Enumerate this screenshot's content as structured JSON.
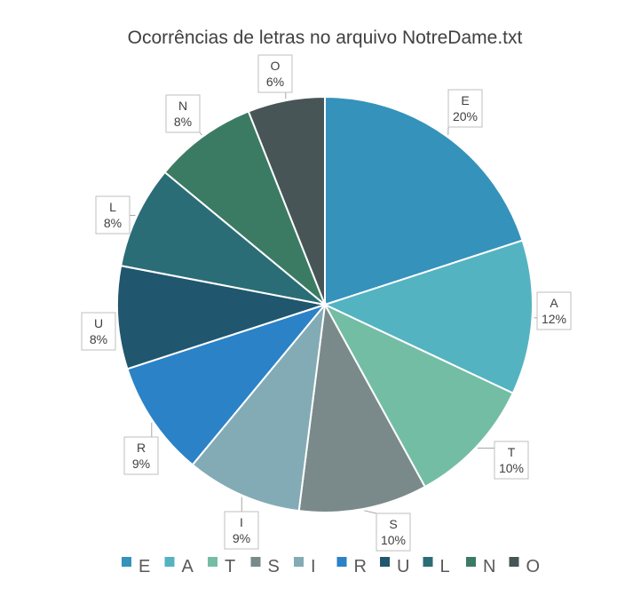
{
  "chart_data": {
    "type": "pie",
    "title": "Ocorrências de letras no arquivo NotreDame.txt",
    "categories": [
      "E",
      "A",
      "T",
      "S",
      "I",
      "R",
      "U",
      "L",
      "N",
      "O"
    ],
    "values": [
      20,
      12,
      10,
      10,
      9,
      9,
      8,
      8,
      8,
      6
    ],
    "labels": [
      "20%",
      "12%",
      "10%",
      "10%",
      "9%",
      "9%",
      "8%",
      "8%",
      "8%",
      "6%"
    ],
    "colors": [
      "#3592bb",
      "#54b3c1",
      "#74bda5",
      "#7a8a8a",
      "#83abb5",
      "#2b82c7",
      "#20566e",
      "#2b6d76",
      "#3b7b64",
      "#475556"
    ],
    "legend_position": "bottom",
    "start_angle_deg": 0,
    "direction": "clockwise"
  }
}
